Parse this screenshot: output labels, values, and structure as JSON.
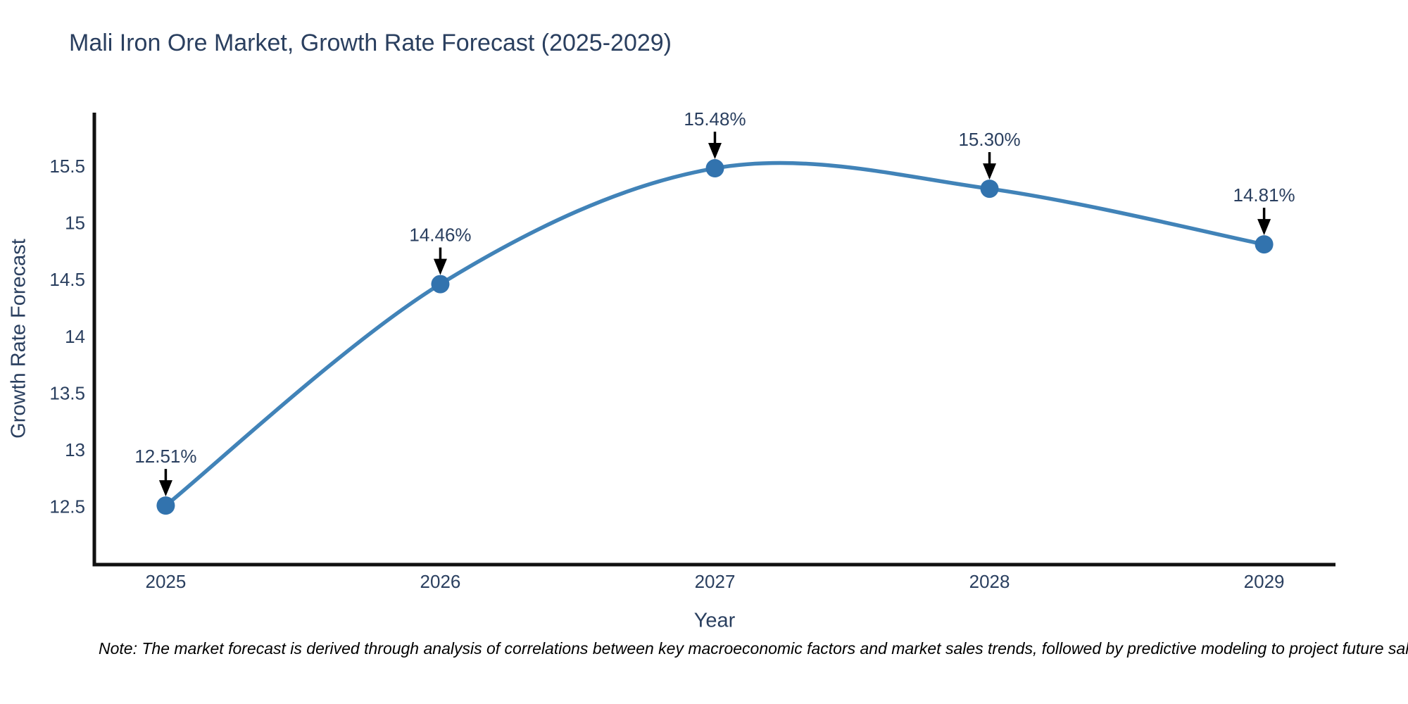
{
  "header": {
    "title": "Mali Iron Ore Market, Growth Rate Forecast (2025-2029)"
  },
  "footnote": {
    "text": "Note: The market forecast is derived through analysis of correlations between key macroeconomic factors and market sales trends, followed by predictive modeling to project future sal"
  },
  "chart_data": {
    "type": "line",
    "title": "Mali Iron Ore Market, Growth Rate Forecast (2025-2029)",
    "xlabel": "Year",
    "ylabel": "Growth Rate Forecast",
    "x": [
      2025,
      2026,
      2027,
      2028,
      2029
    ],
    "series": [
      {
        "name": "Growth Rate Forecast",
        "values": [
          12.51,
          14.46,
          15.48,
          15.3,
          14.81
        ]
      }
    ],
    "point_labels": [
      "12.51%",
      "14.46%",
      "15.48%",
      "15.30%",
      "14.81%"
    ],
    "xticks": [
      2025,
      2026,
      2027,
      2028,
      2029
    ],
    "xtick_labels": [
      "2025",
      "2026",
      "2027",
      "2028",
      "2029"
    ],
    "yticks": [
      12.5,
      13,
      13.5,
      14,
      14.5,
      15,
      15.5
    ],
    "ytick_labels": [
      "12.5",
      "13",
      "13.5",
      "14",
      "14.5",
      "15",
      "15.5"
    ],
    "xlim": [
      2024.74,
      2029.26
    ],
    "ylim": [
      11.99,
      15.97
    ],
    "grid": false,
    "legend": "none",
    "line_shape": "spline",
    "colors": {
      "line": "#4183b8",
      "marker": "#3273ae",
      "axis": "#111111",
      "label": "#2a3f5f",
      "annotation_text": "#2a3f5f",
      "annotation_arrow": "#000000",
      "background": "#ffffff"
    }
  }
}
